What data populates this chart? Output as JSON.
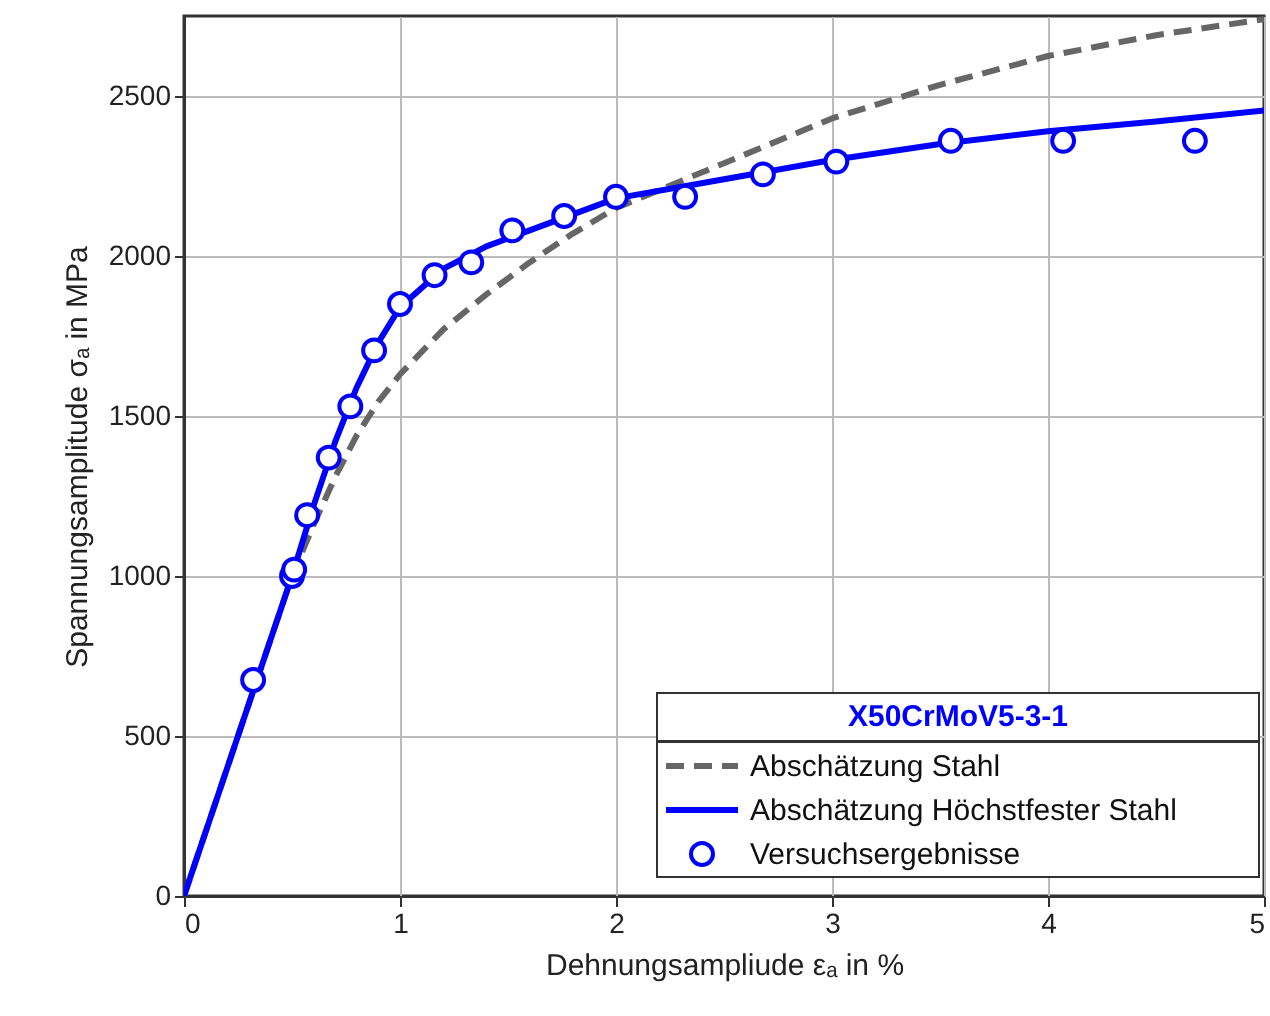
{
  "chart_data": {
    "type": "line",
    "xlabel": "Dehnungsampliude εₐ in %",
    "ylabel": "Spannungsamplitude σₐ in MPa",
    "xlim": [
      0,
      5
    ],
    "xticks": [
      0,
      1,
      2,
      3,
      4,
      5
    ],
    "ylim": [
      0,
      2750
    ],
    "yticks": [
      0,
      500,
      1000,
      1500,
      2000,
      2500
    ],
    "grid": true,
    "legend": "bottom right",
    "legend_title": "X50CrMoV5-3-1",
    "series": [
      {
        "name": "Abschätzung Stahl",
        "color": "#666666",
        "line_style": "dashed",
        "marker": "none",
        "x": [
          0,
          0.5,
          0.6,
          0.7,
          0.8,
          0.9,
          1.0,
          1.2,
          1.4,
          1.6,
          1.8,
          2.0,
          2.5,
          3.0,
          3.5,
          4.0,
          4.5,
          5.0
        ],
        "values": [
          0,
          1000,
          1160,
          1310,
          1440,
          1545,
          1630,
          1770,
          1880,
          1980,
          2070,
          2150,
          2290,
          2430,
          2535,
          2625,
          2690,
          2740
        ]
      },
      {
        "name": "Abschätzung Höchstfester Stahl",
        "color": "#0000ff",
        "line_style": "solid",
        "marker": "none",
        "x": [
          0,
          0.5,
          0.6,
          0.7,
          0.8,
          0.9,
          1.0,
          1.2,
          1.4,
          1.6,
          1.8,
          2.0,
          2.5,
          3.0,
          3.5,
          4.0,
          4.5,
          5.0
        ],
        "values": [
          0,
          1000,
          1220,
          1420,
          1590,
          1730,
          1840,
          1960,
          2030,
          2080,
          2130,
          2180,
          2240,
          2300,
          2350,
          2390,
          2420,
          2455
        ]
      },
      {
        "name": "Versuchsergebnisse",
        "type": "scatter",
        "color": "#0000ff",
        "marker": "circle",
        "x": [
          0.32,
          0.5,
          0.51,
          0.57,
          0.67,
          0.77,
          0.88,
          1.0,
          1.16,
          1.33,
          1.52,
          1.76,
          2.0,
          2.32,
          2.68,
          3.02,
          3.55,
          4.07,
          4.68
        ],
        "values": [
          675,
          1000,
          1020,
          1190,
          1370,
          1530,
          1705,
          1850,
          1940,
          1980,
          2080,
          2125,
          2185,
          2185,
          2255,
          2295,
          2360,
          2360,
          2360
        ]
      }
    ]
  }
}
